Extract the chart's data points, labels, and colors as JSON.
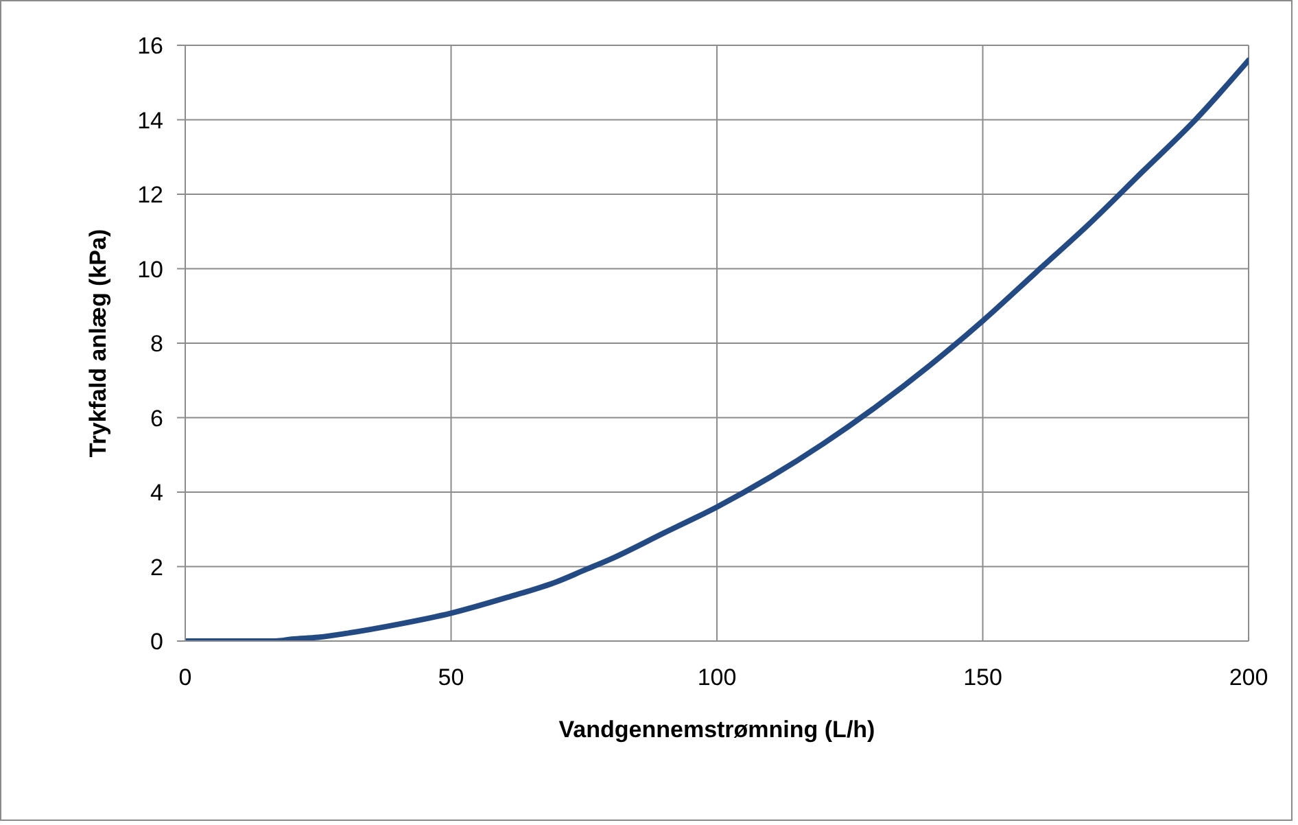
{
  "chart_data": {
    "type": "line",
    "xlabel": "Vandgennemstrømning (L/h)",
    "ylabel": "Trykfald anlæg  (kPa)",
    "x": [
      0,
      10,
      17,
      20,
      25,
      30,
      40,
      50,
      60,
      70,
      75,
      80,
      90,
      100,
      110,
      120,
      130,
      140,
      150,
      160,
      170,
      180,
      190,
      200
    ],
    "series": [
      {
        "color": "#244a84",
        "values": [
          0,
          0,
          0,
          0.05,
          0.1,
          0.2,
          0.45,
          0.75,
          1.15,
          1.6,
          1.9,
          2.2,
          2.9,
          3.6,
          4.4,
          5.3,
          6.3,
          7.4,
          8.6,
          9.9,
          11.2,
          12.6,
          14.0,
          15.6
        ]
      }
    ],
    "xlim": [
      0,
      200
    ],
    "xticks": [
      0,
      50,
      100,
      150,
      200
    ],
    "ylim": [
      0,
      16
    ],
    "yticks": [
      0,
      2,
      4,
      6,
      8,
      10,
      12,
      14,
      16
    ],
    "grid": true,
    "legend": false,
    "marker": "none",
    "line_style": "solid"
  }
}
